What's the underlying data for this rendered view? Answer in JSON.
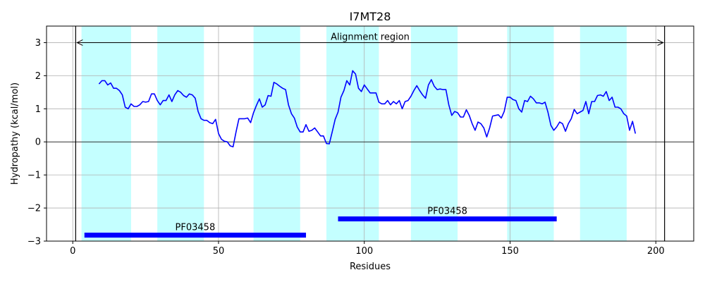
{
  "chart_data": {
    "type": "line",
    "title": "I7MT28",
    "xlabel": "Residues",
    "ylabel": "Hydropathy (kcal/mol)",
    "xlim": [
      -9,
      213
    ],
    "ylim": [
      -3,
      3.5
    ],
    "xticks": [
      0,
      50,
      100,
      150,
      200
    ],
    "yticks": [
      -3,
      -2,
      -1,
      0,
      1,
      2,
      3
    ],
    "grid": true,
    "colors": {
      "line": "#0000ff",
      "band": "#c4ffff",
      "domain": "#0000ff",
      "frame": "#000000"
    },
    "series": [
      {
        "x": [
          9,
          10,
          11,
          12,
          13,
          14,
          15,
          16,
          17,
          18,
          19,
          20,
          21,
          22,
          23,
          24,
          25,
          26,
          27,
          28,
          29,
          30,
          31,
          32,
          33,
          34,
          35,
          36,
          37,
          38,
          39,
          40,
          41,
          42,
          43,
          44,
          45,
          46,
          47,
          48,
          49,
          50,
          51,
          52,
          53,
          54,
          55,
          56,
          57,
          58,
          59,
          60,
          61,
          62,
          63,
          64,
          65,
          66,
          67,
          68,
          69,
          70,
          71,
          72,
          73,
          74,
          75,
          76,
          77,
          78,
          79,
          80,
          81,
          82,
          83,
          84,
          85,
          86,
          87,
          88,
          89,
          90,
          91,
          92,
          93,
          94,
          95,
          96,
          97,
          98,
          99,
          100,
          101,
          102,
          103,
          104,
          105,
          106,
          107,
          108,
          109,
          110,
          111,
          112,
          113,
          114,
          115,
          116,
          117,
          118,
          119,
          120,
          121,
          122,
          123,
          124,
          125,
          126,
          127,
          128,
          129,
          130,
          131,
          132,
          133,
          134,
          135,
          136,
          137,
          138,
          139,
          140,
          141,
          142,
          143,
          144,
          145,
          146,
          147,
          148,
          149,
          150,
          151,
          152,
          153,
          154,
          155,
          156,
          157,
          158,
          159,
          160,
          161,
          162,
          163,
          164,
          165,
          166,
          167,
          168,
          169,
          170,
          171,
          172,
          173,
          174,
          175,
          176,
          177,
          178,
          179,
          180,
          181,
          182,
          183,
          184,
          185,
          186,
          187,
          188,
          189,
          190,
          191,
          192,
          193
        ],
        "y": [
          1.75,
          1.85,
          1.85,
          1.72,
          1.78,
          1.62,
          1.62,
          1.55,
          1.42,
          1.05,
          1.0,
          1.15,
          1.07,
          1.07,
          1.12,
          1.22,
          1.2,
          1.22,
          1.45,
          1.45,
          1.25,
          1.12,
          1.25,
          1.25,
          1.42,
          1.22,
          1.42,
          1.55,
          1.5,
          1.4,
          1.35,
          1.45,
          1.42,
          1.32,
          0.92,
          0.7,
          0.65,
          0.65,
          0.58,
          0.55,
          0.68,
          0.25,
          0.08,
          0.02,
          0.0,
          -0.12,
          -0.15,
          0.3,
          0.7,
          0.7,
          0.7,
          0.72,
          0.58,
          0.88,
          1.1,
          1.3,
          1.05,
          1.12,
          1.4,
          1.38,
          1.8,
          1.75,
          1.68,
          1.62,
          1.58,
          1.12,
          0.85,
          0.72,
          0.45,
          0.3,
          0.3,
          0.52,
          0.32,
          0.35,
          0.42,
          0.3,
          0.18,
          0.18,
          -0.05,
          -0.06,
          0.3,
          0.68,
          0.9,
          1.35,
          1.55,
          1.85,
          1.72,
          2.15,
          2.05,
          1.62,
          1.52,
          1.72,
          1.6,
          1.48,
          1.48,
          1.48,
          1.2,
          1.15,
          1.15,
          1.25,
          1.12,
          1.22,
          1.15,
          1.25,
          1.0,
          1.22,
          1.25,
          1.38,
          1.55,
          1.7,
          1.55,
          1.42,
          1.32,
          1.72,
          1.88,
          1.68,
          1.58,
          1.6,
          1.58,
          1.58,
          1.12,
          0.8,
          0.92,
          0.88,
          0.75,
          0.75,
          0.97,
          0.8,
          0.55,
          0.35,
          0.6,
          0.55,
          0.42,
          0.15,
          0.42,
          0.78,
          0.8,
          0.82,
          0.72,
          0.92,
          1.35,
          1.35,
          1.28,
          1.25,
          1.0,
          0.9,
          1.25,
          1.22,
          1.38,
          1.3,
          1.18,
          1.18,
          1.15,
          1.2,
          0.9,
          0.5,
          0.35,
          0.45,
          0.6,
          0.55,
          0.32,
          0.55,
          0.7,
          0.98,
          0.85,
          0.9,
          0.95,
          1.22,
          0.85,
          1.22,
          1.22,
          1.4,
          1.42,
          1.38,
          1.52,
          1.25,
          1.35,
          1.05,
          1.05,
          1.0,
          0.85,
          0.78,
          0.35,
          0.62,
          0.25
        ]
      }
    ],
    "bands": [
      [
        3,
        20
      ],
      [
        29,
        45
      ],
      [
        62,
        78
      ],
      [
        87,
        105
      ],
      [
        116,
        132
      ],
      [
        149,
        165
      ],
      [
        174,
        190
      ]
    ],
    "alignment": {
      "label": "Alignment region",
      "start": 1,
      "end": 203,
      "y": 3.0
    },
    "domains": [
      {
        "label": "PF03458",
        "start": 4,
        "end": 80,
        "y": -2.82
      },
      {
        "label": "PF03458",
        "start": 91,
        "end": 166,
        "y": -2.33
      }
    ]
  }
}
